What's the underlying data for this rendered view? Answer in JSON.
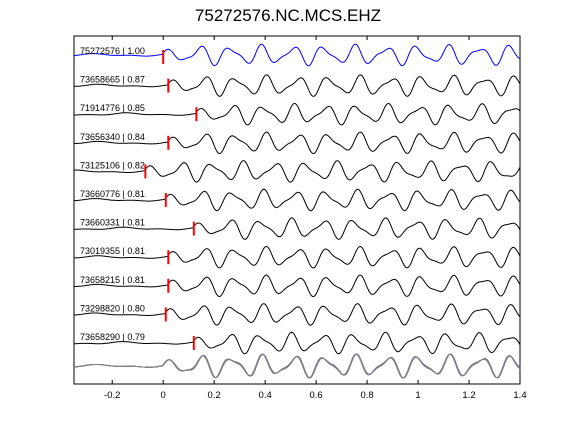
{
  "chart_data": {
    "type": "line",
    "title": "75272576.NC.MCS.EHZ",
    "xlabel": "",
    "ylabel": "",
    "xlim": [
      -0.35,
      1.4
    ],
    "x_ticks": [
      -0.2,
      0,
      0.2,
      0.4,
      0.6,
      0.8,
      1,
      1.2,
      1.4
    ],
    "x_tick_labels": [
      "-0.2",
      "0",
      "0.2",
      "0.4",
      "0.6",
      "0.8",
      "1",
      "1.2",
      "1.4"
    ],
    "grid": false,
    "colors": {
      "reference_trace": "#0000ff",
      "traces": "#000000",
      "pick_marker": "#ff0000",
      "stack_overlay": "#808080"
    },
    "series": [
      {
        "label": "75272576 | 1.00",
        "correlation": 1.0,
        "pick_time": 0.0,
        "reference": true
      },
      {
        "label": "73658665 | 0.87",
        "correlation": 0.87,
        "pick_time": 0.02
      },
      {
        "label": "71914776 | 0.85",
        "correlation": 0.85,
        "pick_time": 0.13
      },
      {
        "label": "73656340 | 0.84",
        "correlation": 0.84,
        "pick_time": 0.02
      },
      {
        "label": "73125106 | 0.82",
        "correlation": 0.82,
        "pick_time": -0.07
      },
      {
        "label": "73660776 | 0.81",
        "correlation": 0.81,
        "pick_time": 0.01
      },
      {
        "label": "73660331 | 0.81",
        "correlation": 0.81,
        "pick_time": 0.12
      },
      {
        "label": "73019355 | 0.81",
        "correlation": 0.81,
        "pick_time": 0.02
      },
      {
        "label": "73658215 | 0.81",
        "correlation": 0.81,
        "pick_time": 0.02
      },
      {
        "label": "73298820 | 0.80",
        "correlation": 0.8,
        "pick_time": 0.01
      },
      {
        "label": "73658290 | 0.79",
        "correlation": 0.79,
        "pick_time": 0.12
      }
    ]
  }
}
